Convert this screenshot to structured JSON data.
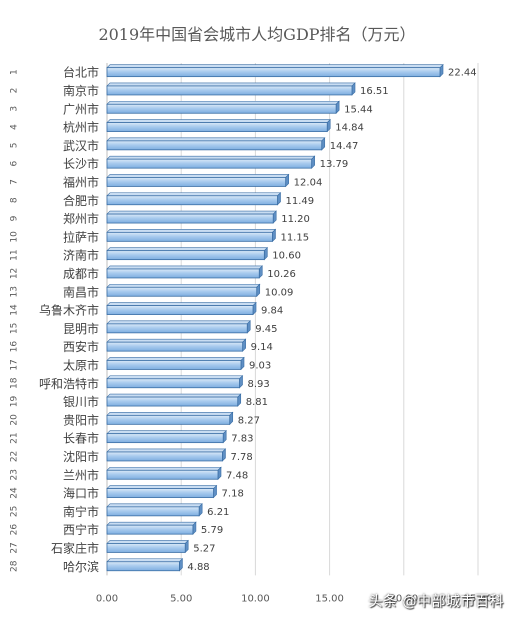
{
  "chart_data": {
    "type": "bar",
    "orientation": "horizontal",
    "title": "2019年中国省会城市人均GDP排名（万元）",
    "ranks": [
      "1",
      "2",
      "3",
      "4",
      "5",
      "6",
      "7",
      "8",
      "9",
      "10",
      "11",
      "12",
      "13",
      "14",
      "15",
      "16",
      "17",
      "18",
      "19",
      "20",
      "21",
      "22",
      "23",
      "24",
      "25",
      "26",
      "27",
      "28"
    ],
    "categories": [
      "台北市",
      "南京市",
      "广州市",
      "杭州市",
      "武汉市",
      "长沙市",
      "福州市",
      "合肥市",
      "郑州市",
      "拉萨市",
      "济南市",
      "成都市",
      "南昌市",
      "乌鲁木齐市",
      "昆明市",
      "西安市",
      "太原市",
      "呼和浩特市",
      "银川市",
      "贵阳市",
      "长春市",
      "沈阳市",
      "兰州市",
      "海口市",
      "南宁市",
      "西宁市",
      "石家庄市",
      "哈尔滨"
    ],
    "values": [
      22.44,
      16.51,
      15.44,
      14.84,
      14.47,
      13.79,
      12.04,
      11.49,
      11.2,
      11.15,
      10.6,
      10.26,
      10.09,
      9.84,
      9.45,
      9.14,
      9.03,
      8.93,
      8.81,
      8.27,
      7.83,
      7.78,
      7.48,
      7.18,
      6.21,
      5.79,
      5.27,
      4.88
    ],
    "value_labels": [
      "22.44",
      "16.51",
      "15.44",
      "14.84",
      "14.47",
      "13.79",
      "12.04",
      "11.49",
      "11.20",
      "11.15",
      "10.60",
      "10.26",
      "10.09",
      "9.84",
      "9.45",
      "9.14",
      "9.03",
      "8.93",
      "8.81",
      "8.27",
      "7.83",
      "7.78",
      "7.48",
      "7.18",
      "6.21",
      "5.79",
      "5.27",
      "4.88"
    ],
    "xlim": [
      0,
      25
    ],
    "x_ticks": [
      0,
      5,
      10,
      15,
      20,
      25
    ],
    "x_tick_labels": [
      "0.00",
      "5.00",
      "10.00",
      "15.00",
      "20.00",
      "25.00"
    ],
    "grid": true,
    "bar_color": "#9dc3e6",
    "bar_edge_color": "#3a6ea5"
  },
  "watermark": "头条 @中部城市百科"
}
